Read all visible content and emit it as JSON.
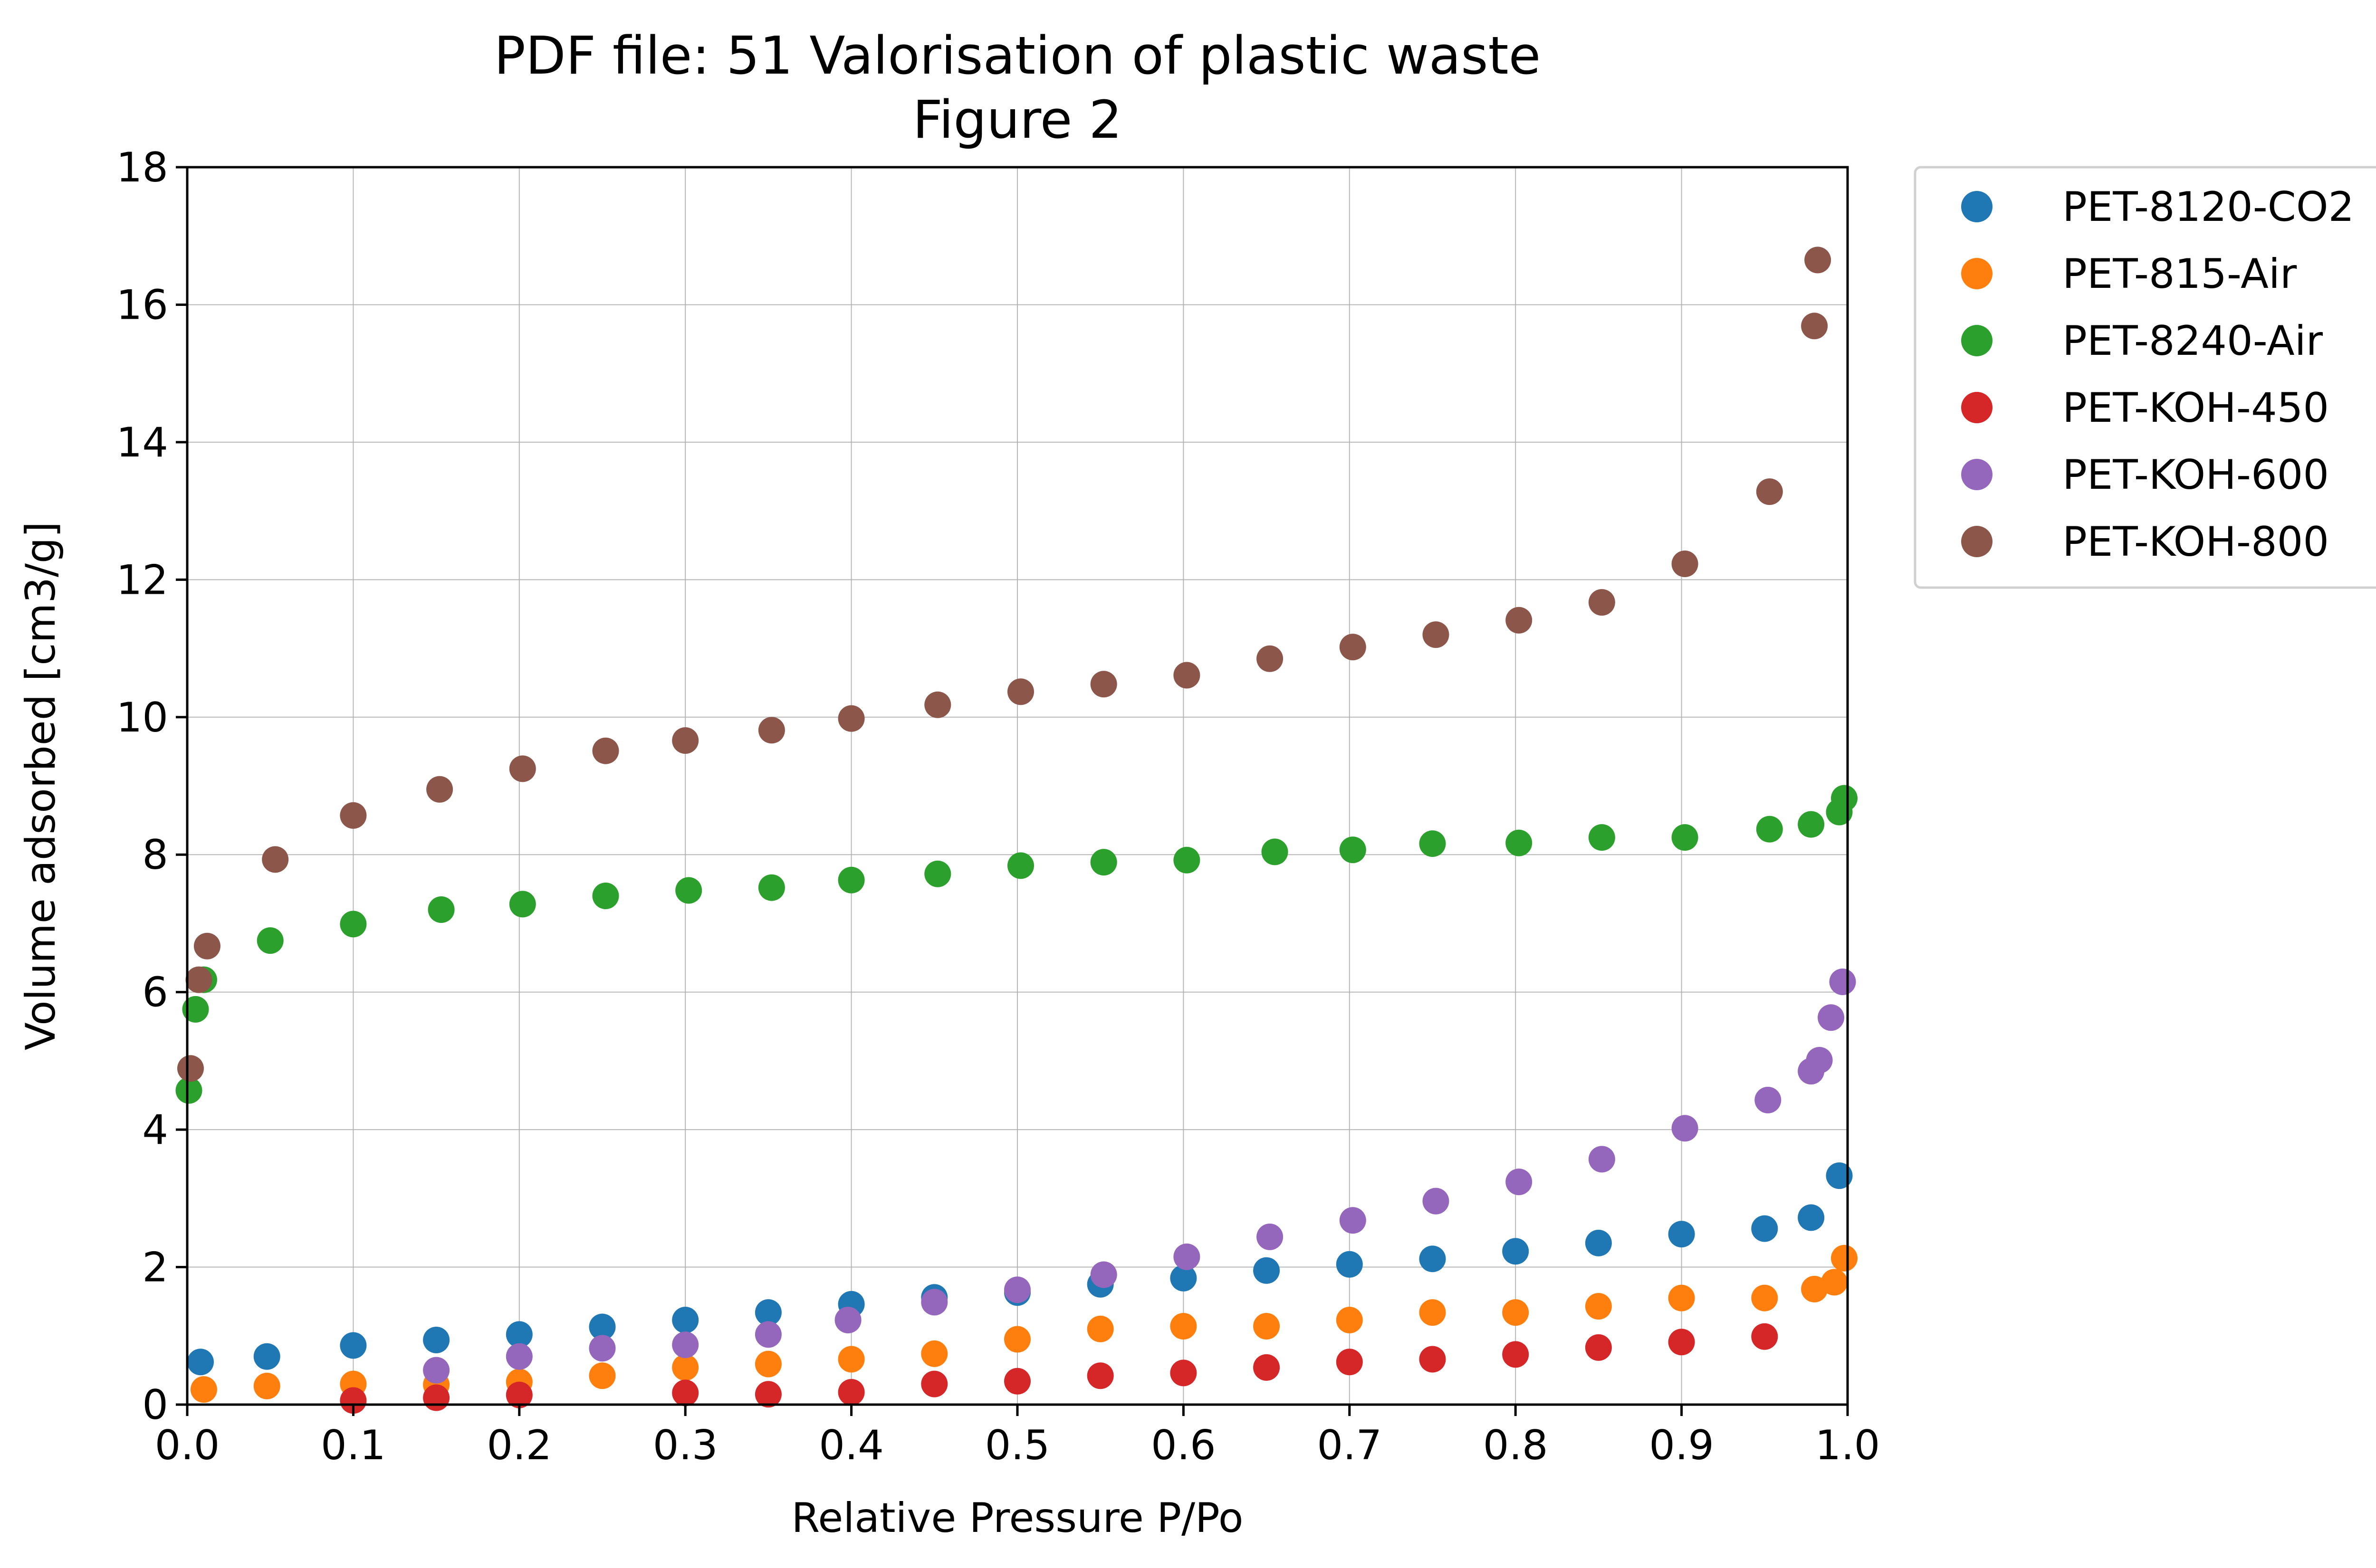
{
  "chart_data": {
    "type": "scatter",
    "title": "PDF file: 51 Valorisation of plastic waste",
    "subtitle": "Figure 2",
    "xlabel": "Relative Pressure P/Po",
    "ylabel": "Volume adsorbed [cm3/g]",
    "xlim": [
      0,
      1.0
    ],
    "ylim": [
      0,
      18
    ],
    "xticks": [
      "0.0",
      "0.1",
      "0.2",
      "0.3",
      "0.4",
      "0.5",
      "0.6",
      "0.7",
      "0.8",
      "0.9",
      "1.0"
    ],
    "yticks": [
      "0",
      "2",
      "4",
      "6",
      "8",
      "10",
      "12",
      "14",
      "16",
      "18"
    ],
    "grid": true,
    "legend_position": "outside-top-right",
    "series": [
      {
        "name": "PET-8120-CO2",
        "color": "#1f77b4",
        "points": [
          [
            0.008,
            0.62
          ],
          [
            0.048,
            0.7
          ],
          [
            0.1,
            0.86
          ],
          [
            0.15,
            0.94
          ],
          [
            0.2,
            1.02
          ],
          [
            0.25,
            1.13
          ],
          [
            0.3,
            1.23
          ],
          [
            0.35,
            1.34
          ],
          [
            0.4,
            1.46
          ],
          [
            0.45,
            1.56
          ],
          [
            0.5,
            1.63
          ],
          [
            0.55,
            1.75
          ],
          [
            0.6,
            1.84
          ],
          [
            0.65,
            1.95
          ],
          [
            0.7,
            2.04
          ],
          [
            0.75,
            2.12
          ],
          [
            0.8,
            2.23
          ],
          [
            0.85,
            2.35
          ],
          [
            0.9,
            2.48
          ],
          [
            0.95,
            2.56
          ],
          [
            0.978,
            2.72
          ],
          [
            0.995,
            3.33
          ]
        ]
      },
      {
        "name": "PET-815-Air",
        "color": "#ff7f0e",
        "points": [
          [
            0.01,
            0.22
          ],
          [
            0.048,
            0.27
          ],
          [
            0.1,
            0.3
          ],
          [
            0.15,
            0.29
          ],
          [
            0.2,
            0.33
          ],
          [
            0.25,
            0.42
          ],
          [
            0.3,
            0.54
          ],
          [
            0.35,
            0.59
          ],
          [
            0.4,
            0.66
          ],
          [
            0.45,
            0.74
          ],
          [
            0.5,
            0.95
          ],
          [
            0.55,
            1.1
          ],
          [
            0.6,
            1.14
          ],
          [
            0.65,
            1.14
          ],
          [
            0.7,
            1.23
          ],
          [
            0.75,
            1.34
          ],
          [
            0.8,
            1.34
          ],
          [
            0.85,
            1.43
          ],
          [
            0.9,
            1.55
          ],
          [
            0.95,
            1.55
          ],
          [
            0.98,
            1.68
          ],
          [
            0.992,
            1.78
          ],
          [
            0.998,
            2.13
          ]
        ]
      },
      {
        "name": "PET-8240-Air",
        "color": "#2ca02c",
        "points": [
          [
            0.001,
            4.57
          ],
          [
            0.005,
            5.75
          ],
          [
            0.01,
            6.18
          ],
          [
            0.05,
            6.75
          ],
          [
            0.1,
            6.99
          ],
          [
            0.153,
            7.2
          ],
          [
            0.202,
            7.28
          ],
          [
            0.252,
            7.4
          ],
          [
            0.302,
            7.48
          ],
          [
            0.352,
            7.52
          ],
          [
            0.4,
            7.63
          ],
          [
            0.452,
            7.72
          ],
          [
            0.502,
            7.84
          ],
          [
            0.552,
            7.89
          ],
          [
            0.602,
            7.92
          ],
          [
            0.655,
            8.04
          ],
          [
            0.702,
            8.07
          ],
          [
            0.75,
            8.16
          ],
          [
            0.802,
            8.17
          ],
          [
            0.852,
            8.25
          ],
          [
            0.902,
            8.25
          ],
          [
            0.953,
            8.37
          ],
          [
            0.978,
            8.44
          ],
          [
            0.995,
            8.62
          ],
          [
            0.998,
            8.82
          ]
        ]
      },
      {
        "name": "PET-KOH-450",
        "color": "#d62728",
        "points": [
          [
            0.1,
            0.06
          ],
          [
            0.15,
            0.1
          ],
          [
            0.2,
            0.14
          ],
          [
            0.3,
            0.17
          ],
          [
            0.35,
            0.15
          ],
          [
            0.4,
            0.18
          ],
          [
            0.45,
            0.3
          ],
          [
            0.5,
            0.34
          ],
          [
            0.55,
            0.42
          ],
          [
            0.6,
            0.46
          ],
          [
            0.65,
            0.54
          ],
          [
            0.7,
            0.62
          ],
          [
            0.75,
            0.66
          ],
          [
            0.8,
            0.73
          ],
          [
            0.85,
            0.83
          ],
          [
            0.9,
            0.91
          ],
          [
            0.95,
            0.99
          ]
        ]
      },
      {
        "name": "PET-KOH-600",
        "color": "#9467bd",
        "points": [
          [
            0.15,
            0.5
          ],
          [
            0.2,
            0.7
          ],
          [
            0.25,
            0.82
          ],
          [
            0.3,
            0.87
          ],
          [
            0.35,
            1.02
          ],
          [
            0.398,
            1.23
          ],
          [
            0.45,
            1.49
          ],
          [
            0.5,
            1.67
          ],
          [
            0.552,
            1.89
          ],
          [
            0.602,
            2.15
          ],
          [
            0.652,
            2.44
          ],
          [
            0.702,
            2.68
          ],
          [
            0.752,
            2.96
          ],
          [
            0.802,
            3.24
          ],
          [
            0.852,
            3.57
          ],
          [
            0.902,
            4.02
          ],
          [
            0.952,
            4.43
          ],
          [
            0.978,
            4.85
          ],
          [
            0.983,
            5.01
          ],
          [
            0.99,
            5.63
          ],
          [
            0.997,
            6.15
          ]
        ]
      },
      {
        "name": "PET-KOH-800",
        "color": "#8c564b",
        "points": [
          [
            0.002,
            4.89
          ],
          [
            0.007,
            6.18
          ],
          [
            0.012,
            6.67
          ],
          [
            0.053,
            7.93
          ],
          [
            0.1,
            8.57
          ],
          [
            0.152,
            8.95
          ],
          [
            0.202,
            9.25
          ],
          [
            0.252,
            9.51
          ],
          [
            0.3,
            9.66
          ],
          [
            0.352,
            9.81
          ],
          [
            0.4,
            9.98
          ],
          [
            0.452,
            10.18
          ],
          [
            0.502,
            10.37
          ],
          [
            0.552,
            10.48
          ],
          [
            0.602,
            10.61
          ],
          [
            0.652,
            10.85
          ],
          [
            0.702,
            11.02
          ],
          [
            0.752,
            11.2
          ],
          [
            0.802,
            11.41
          ],
          [
            0.852,
            11.67
          ],
          [
            0.902,
            12.23
          ],
          [
            0.953,
            13.28
          ],
          [
            0.98,
            15.69
          ],
          [
            0.982,
            16.65
          ]
        ]
      }
    ]
  }
}
